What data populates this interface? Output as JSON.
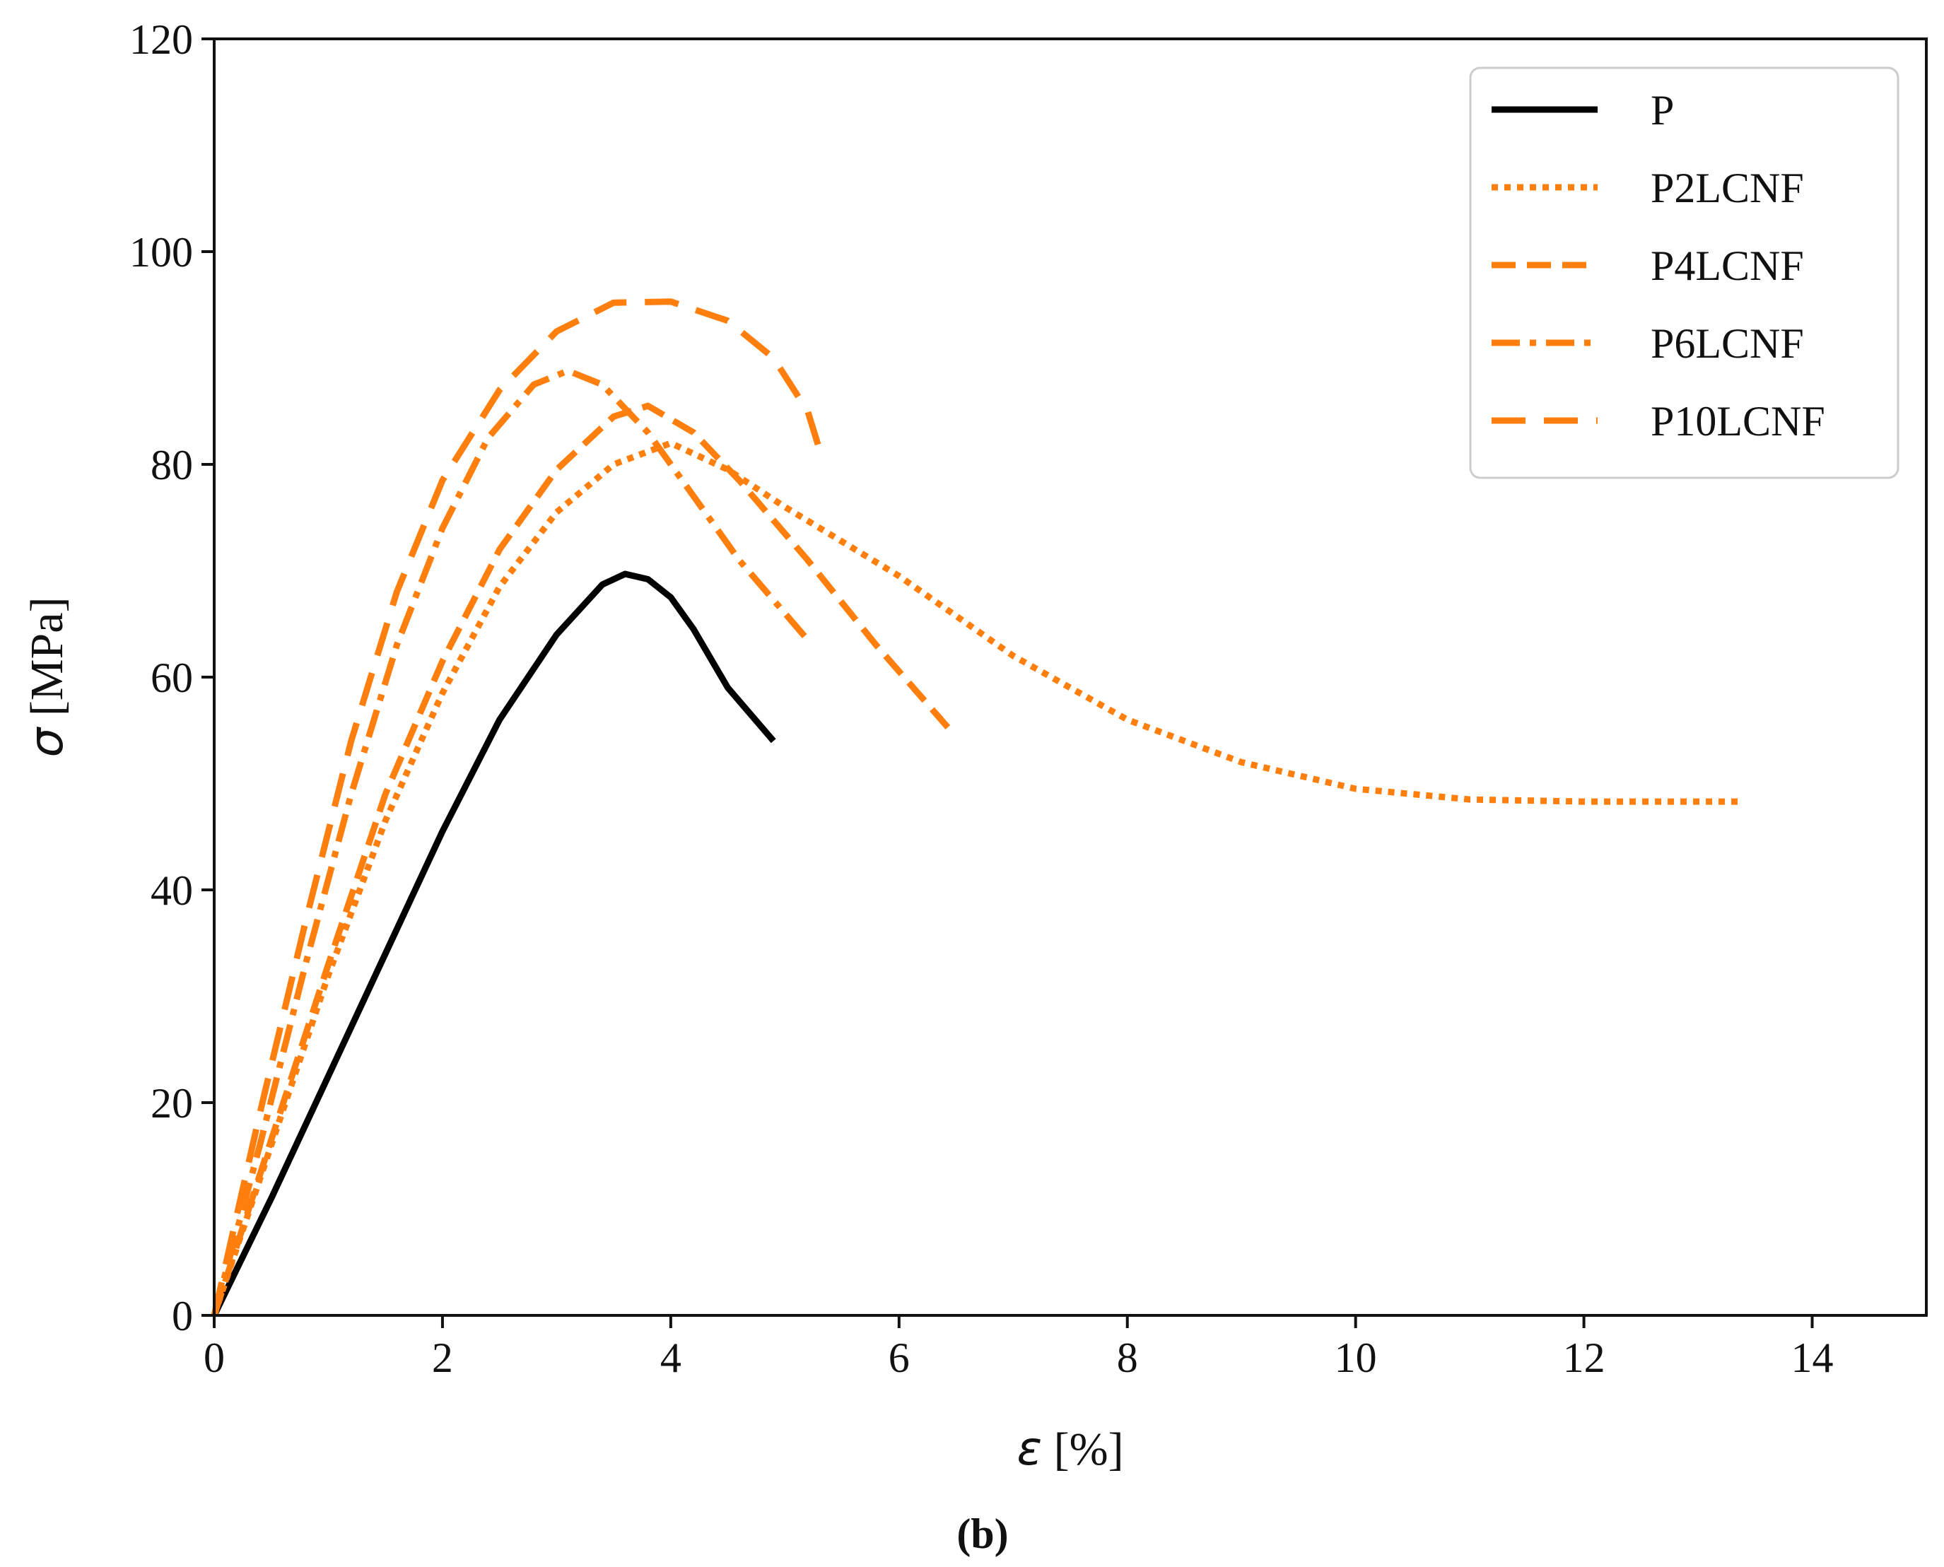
{
  "chart_data": {
    "type": "line",
    "title": "",
    "xlabel_symbol": "ε",
    "xlabel_unit": " [%]",
    "ylabel_symbol": "σ",
    "ylabel_unit": " [MPa]",
    "xlim": [
      0,
      15
    ],
    "ylim": [
      0,
      120
    ],
    "x_ticks": [
      0,
      2,
      4,
      6,
      8,
      10,
      12,
      14
    ],
    "y_ticks": [
      0,
      20,
      40,
      60,
      80,
      100,
      120
    ],
    "grid": false,
    "legend_position": "top-right",
    "caption": "(b)",
    "series": [
      {
        "name": "P",
        "color": "#000000",
        "style": "solid",
        "points": [
          [
            0,
            0
          ],
          [
            0.5,
            11
          ],
          [
            1,
            22.5
          ],
          [
            1.5,
            34
          ],
          [
            2,
            45.5
          ],
          [
            2.5,
            56
          ],
          [
            3,
            64
          ],
          [
            3.4,
            68.7
          ],
          [
            3.6,
            69.7
          ],
          [
            3.8,
            69.2
          ],
          [
            4.0,
            67.5
          ],
          [
            4.2,
            64.5
          ],
          [
            4.5,
            59
          ],
          [
            4.9,
            54
          ]
        ]
      },
      {
        "name": "P2LCNF",
        "color": "#FF7F0E",
        "style": "dotted",
        "points": [
          [
            0,
            0
          ],
          [
            0.5,
            16
          ],
          [
            1,
            32
          ],
          [
            1.5,
            46.5
          ],
          [
            2,
            58.5
          ],
          [
            2.5,
            68.5
          ],
          [
            3,
            75.5
          ],
          [
            3.5,
            80
          ],
          [
            4,
            82
          ],
          [
            4.5,
            79.5
          ],
          [
            5,
            76
          ],
          [
            6,
            69.5
          ],
          [
            7,
            62
          ],
          [
            8,
            56
          ],
          [
            9,
            52
          ],
          [
            10,
            49.5
          ],
          [
            11,
            48.5
          ],
          [
            12,
            48.3
          ],
          [
            13.4,
            48.3
          ]
        ]
      },
      {
        "name": "P4LCNF",
        "color": "#FF7F0E",
        "style": "dashed",
        "points": [
          [
            0,
            0
          ],
          [
            0.5,
            16.5
          ],
          [
            1,
            33
          ],
          [
            1.5,
            49
          ],
          [
            2,
            61.5
          ],
          [
            2.5,
            72
          ],
          [
            3,
            79.5
          ],
          [
            3.5,
            84.5
          ],
          [
            3.8,
            85.5
          ],
          [
            4.2,
            83
          ],
          [
            4.6,
            78.5
          ],
          [
            5.2,
            71
          ],
          [
            5.8,
            63
          ],
          [
            6.45,
            55
          ]
        ]
      },
      {
        "name": "P6LCNF",
        "color": "#FF7F0E",
        "style": "dashdot",
        "points": [
          [
            0,
            0
          ],
          [
            0.4,
            16
          ],
          [
            0.8,
            33
          ],
          [
            1.2,
            49
          ],
          [
            1.6,
            63
          ],
          [
            2,
            74
          ],
          [
            2.4,
            82.5
          ],
          [
            2.8,
            87.5
          ],
          [
            3.1,
            88.8
          ],
          [
            3.4,
            87.5
          ],
          [
            3.8,
            83
          ],
          [
            4.2,
            77
          ],
          [
            4.6,
            71
          ],
          [
            5.2,
            63.5
          ]
        ]
      },
      {
        "name": "P10LCNF",
        "color": "#FF7F0E",
        "style": "longdash",
        "points": [
          [
            0,
            0
          ],
          [
            0.4,
            19
          ],
          [
            0.8,
            37
          ],
          [
            1.2,
            54
          ],
          [
            1.6,
            68
          ],
          [
            2,
            78.5
          ],
          [
            2.5,
            87
          ],
          [
            3,
            92.5
          ],
          [
            3.5,
            95.2
          ],
          [
            4,
            95.3
          ],
          [
            4.5,
            93.5
          ],
          [
            4.9,
            90
          ],
          [
            5.2,
            85
          ],
          [
            5.3,
            81.5
          ]
        ]
      }
    ]
  }
}
